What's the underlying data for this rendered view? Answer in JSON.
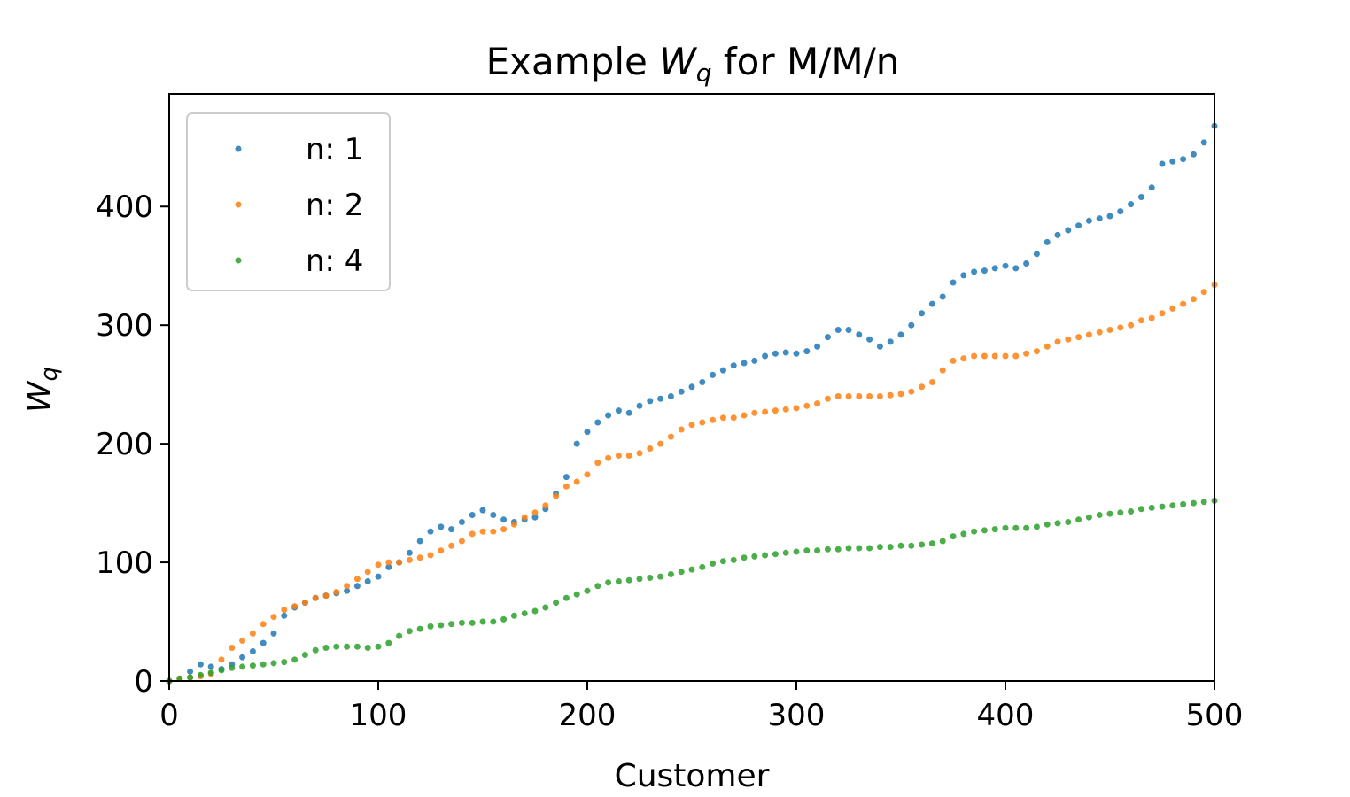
{
  "chart_data": {
    "type": "scatter",
    "title": {
      "text": "Example ",
      "math_base": "W",
      "math_sub": "q",
      "suffix": " for M/M/n"
    },
    "xlabel": "Customer",
    "ylabel": {
      "base": "W",
      "sub": "q"
    },
    "xlim": [
      0,
      500
    ],
    "ylim": [
      0,
      495
    ],
    "xticks": [
      0,
      100,
      200,
      300,
      400,
      500
    ],
    "yticks": [
      0,
      100,
      200,
      300,
      400
    ],
    "grid": false,
    "legend_position": "upper-left",
    "series": [
      {
        "name": "n: 1",
        "color": "#1f77b4",
        "points": [
          [
            0,
            0
          ],
          [
            10,
            8
          ],
          [
            15,
            14
          ],
          [
            20,
            12
          ],
          [
            25,
            10
          ],
          [
            30,
            14
          ],
          [
            35,
            20
          ],
          [
            40,
            25
          ],
          [
            45,
            32
          ],
          [
            50,
            40
          ],
          [
            55,
            55
          ],
          [
            60,
            62
          ],
          [
            65,
            66
          ],
          [
            70,
            70
          ],
          [
            75,
            72
          ],
          [
            80,
            74
          ],
          [
            85,
            76
          ],
          [
            90,
            80
          ],
          [
            95,
            84
          ],
          [
            100,
            88
          ],
          [
            105,
            96
          ],
          [
            110,
            100
          ],
          [
            115,
            108
          ],
          [
            120,
            118
          ],
          [
            125,
            126
          ],
          [
            130,
            130
          ],
          [
            135,
            128
          ],
          [
            140,
            134
          ],
          [
            145,
            140
          ],
          [
            150,
            144
          ],
          [
            155,
            140
          ],
          [
            160,
            136
          ],
          [
            165,
            134
          ],
          [
            170,
            136
          ],
          [
            175,
            138
          ],
          [
            180,
            145
          ],
          [
            185,
            158
          ],
          [
            190,
            172
          ],
          [
            195,
            200
          ],
          [
            200,
            210
          ],
          [
            205,
            218
          ],
          [
            210,
            224
          ],
          [
            215,
            228
          ],
          [
            220,
            226
          ],
          [
            225,
            232
          ],
          [
            230,
            236
          ],
          [
            235,
            238
          ],
          [
            240,
            240
          ],
          [
            245,
            244
          ],
          [
            250,
            248
          ],
          [
            255,
            252
          ],
          [
            260,
            258
          ],
          [
            265,
            262
          ],
          [
            270,
            266
          ],
          [
            275,
            268
          ],
          [
            280,
            270
          ],
          [
            285,
            274
          ],
          [
            290,
            276
          ],
          [
            295,
            277
          ],
          [
            300,
            276
          ],
          [
            305,
            278
          ],
          [
            310,
            282
          ],
          [
            315,
            290
          ],
          [
            320,
            296
          ],
          [
            325,
            296
          ],
          [
            330,
            292
          ],
          [
            335,
            288
          ],
          [
            340,
            282
          ],
          [
            345,
            286
          ],
          [
            350,
            292
          ],
          [
            355,
            300
          ],
          [
            360,
            310
          ],
          [
            365,
            318
          ],
          [
            370,
            324
          ],
          [
            375,
            336
          ],
          [
            380,
            342
          ],
          [
            385,
            345
          ],
          [
            390,
            346
          ],
          [
            395,
            348
          ],
          [
            400,
            350
          ],
          [
            405,
            348
          ],
          [
            410,
            352
          ],
          [
            415,
            360
          ],
          [
            420,
            370
          ],
          [
            425,
            376
          ],
          [
            430,
            380
          ],
          [
            435,
            384
          ],
          [
            440,
            388
          ],
          [
            445,
            390
          ],
          [
            450,
            392
          ],
          [
            455,
            396
          ],
          [
            460,
            402
          ],
          [
            465,
            408
          ],
          [
            470,
            416
          ],
          [
            475,
            436
          ],
          [
            480,
            438
          ],
          [
            485,
            440
          ],
          [
            490,
            444
          ],
          [
            495,
            454
          ],
          [
            500,
            468
          ]
        ]
      },
      {
        "name": "n: 2",
        "color": "#ff7f0e",
        "points": [
          [
            0,
            0
          ],
          [
            5,
            2
          ],
          [
            10,
            3
          ],
          [
            15,
            4
          ],
          [
            20,
            6
          ],
          [
            25,
            18
          ],
          [
            30,
            28
          ],
          [
            35,
            34
          ],
          [
            40,
            40
          ],
          [
            45,
            48
          ],
          [
            50,
            54
          ],
          [
            55,
            60
          ],
          [
            60,
            63
          ],
          [
            65,
            66
          ],
          [
            70,
            70
          ],
          [
            75,
            72
          ],
          [
            80,
            75
          ],
          [
            85,
            80
          ],
          [
            90,
            86
          ],
          [
            95,
            92
          ],
          [
            100,
            98
          ],
          [
            105,
            100
          ],
          [
            110,
            100
          ],
          [
            115,
            102
          ],
          [
            120,
            104
          ],
          [
            125,
            106
          ],
          [
            130,
            110
          ],
          [
            135,
            114
          ],
          [
            140,
            118
          ],
          [
            145,
            124
          ],
          [
            150,
            126
          ],
          [
            155,
            126
          ],
          [
            160,
            128
          ],
          [
            165,
            132
          ],
          [
            170,
            138
          ],
          [
            175,
            142
          ],
          [
            180,
            148
          ],
          [
            185,
            156
          ],
          [
            190,
            164
          ],
          [
            195,
            168
          ],
          [
            200,
            174
          ],
          [
            205,
            184
          ],
          [
            210,
            188
          ],
          [
            215,
            190
          ],
          [
            220,
            190
          ],
          [
            225,
            192
          ],
          [
            230,
            196
          ],
          [
            235,
            200
          ],
          [
            240,
            206
          ],
          [
            245,
            212
          ],
          [
            250,
            216
          ],
          [
            255,
            218
          ],
          [
            260,
            220
          ],
          [
            265,
            222
          ],
          [
            270,
            222
          ],
          [
            275,
            224
          ],
          [
            280,
            226
          ],
          [
            285,
            227
          ],
          [
            290,
            228
          ],
          [
            295,
            229
          ],
          [
            300,
            230
          ],
          [
            305,
            232
          ],
          [
            310,
            234
          ],
          [
            315,
            238
          ],
          [
            320,
            240
          ],
          [
            325,
            240
          ],
          [
            330,
            240
          ],
          [
            335,
            240
          ],
          [
            340,
            240
          ],
          [
            345,
            241
          ],
          [
            350,
            242
          ],
          [
            355,
            244
          ],
          [
            360,
            248
          ],
          [
            365,
            252
          ],
          [
            370,
            262
          ],
          [
            375,
            270
          ],
          [
            380,
            272
          ],
          [
            385,
            274
          ],
          [
            390,
            274
          ],
          [
            395,
            274
          ],
          [
            400,
            274
          ],
          [
            405,
            274
          ],
          [
            410,
            276
          ],
          [
            415,
            278
          ],
          [
            420,
            282
          ],
          [
            425,
            286
          ],
          [
            430,
            288
          ],
          [
            435,
            290
          ],
          [
            440,
            292
          ],
          [
            445,
            294
          ],
          [
            450,
            296
          ],
          [
            455,
            298
          ],
          [
            460,
            300
          ],
          [
            465,
            304
          ],
          [
            470,
            306
          ],
          [
            475,
            310
          ],
          [
            480,
            314
          ],
          [
            485,
            318
          ],
          [
            490,
            322
          ],
          [
            495,
            328
          ],
          [
            500,
            334
          ]
        ]
      },
      {
        "name": "n: 4",
        "color": "#2ca02c",
        "points": [
          [
            0,
            0
          ],
          [
            5,
            2
          ],
          [
            10,
            3
          ],
          [
            15,
            5
          ],
          [
            20,
            7
          ],
          [
            25,
            9
          ],
          [
            30,
            11
          ],
          [
            35,
            12
          ],
          [
            40,
            13
          ],
          [
            45,
            14
          ],
          [
            50,
            15
          ],
          [
            55,
            16
          ],
          [
            60,
            18
          ],
          [
            65,
            22
          ],
          [
            70,
            26
          ],
          [
            75,
            28
          ],
          [
            80,
            29
          ],
          [
            85,
            29
          ],
          [
            90,
            29
          ],
          [
            95,
            28
          ],
          [
            100,
            29
          ],
          [
            105,
            32
          ],
          [
            110,
            38
          ],
          [
            115,
            42
          ],
          [
            120,
            44
          ],
          [
            125,
            46
          ],
          [
            130,
            47
          ],
          [
            135,
            48
          ],
          [
            140,
            49
          ],
          [
            145,
            49
          ],
          [
            150,
            50
          ],
          [
            155,
            50
          ],
          [
            160,
            52
          ],
          [
            165,
            55
          ],
          [
            170,
            57
          ],
          [
            175,
            59
          ],
          [
            180,
            62
          ],
          [
            185,
            66
          ],
          [
            190,
            70
          ],
          [
            195,
            73
          ],
          [
            200,
            76
          ],
          [
            205,
            80
          ],
          [
            210,
            83
          ],
          [
            215,
            84
          ],
          [
            220,
            85
          ],
          [
            225,
            86
          ],
          [
            230,
            87
          ],
          [
            235,
            88
          ],
          [
            240,
            90
          ],
          [
            245,
            92
          ],
          [
            250,
            94
          ],
          [
            255,
            96
          ],
          [
            260,
            99
          ],
          [
            265,
            101
          ],
          [
            270,
            102
          ],
          [
            275,
            104
          ],
          [
            280,
            105
          ],
          [
            285,
            106
          ],
          [
            290,
            107
          ],
          [
            295,
            108
          ],
          [
            300,
            109
          ],
          [
            305,
            110
          ],
          [
            310,
            110
          ],
          [
            315,
            111
          ],
          [
            320,
            111
          ],
          [
            325,
            112
          ],
          [
            330,
            112
          ],
          [
            335,
            112
          ],
          [
            340,
            113
          ],
          [
            345,
            113
          ],
          [
            350,
            114
          ],
          [
            355,
            114
          ],
          [
            360,
            115
          ],
          [
            365,
            116
          ],
          [
            370,
            118
          ],
          [
            375,
            122
          ],
          [
            380,
            124
          ],
          [
            385,
            126
          ],
          [
            390,
            127
          ],
          [
            395,
            128
          ],
          [
            400,
            129
          ],
          [
            405,
            129
          ],
          [
            410,
            129
          ],
          [
            415,
            130
          ],
          [
            420,
            132
          ],
          [
            425,
            133
          ],
          [
            430,
            134
          ],
          [
            435,
            136
          ],
          [
            440,
            138
          ],
          [
            445,
            140
          ],
          [
            450,
            141
          ],
          [
            455,
            142
          ],
          [
            460,
            143
          ],
          [
            465,
            145
          ],
          [
            470,
            146
          ],
          [
            475,
            147
          ],
          [
            480,
            148
          ],
          [
            485,
            149
          ],
          [
            490,
            150
          ],
          [
            495,
            151
          ],
          [
            500,
            152
          ]
        ]
      }
    ]
  }
}
